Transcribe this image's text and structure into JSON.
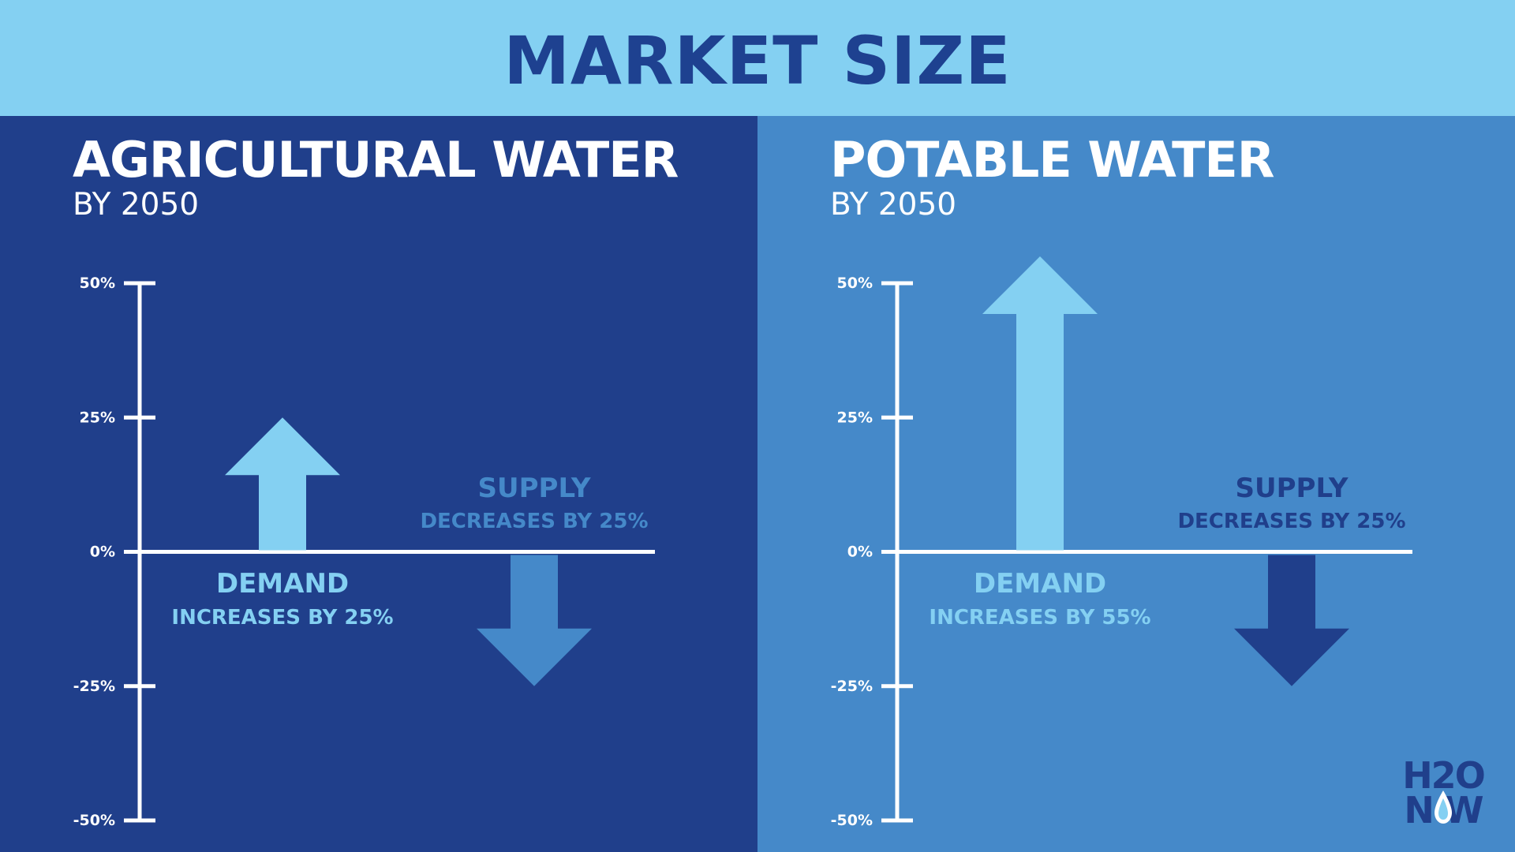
{
  "title": "MARKET SIZE",
  "colors": {
    "header_bg": "#84d0f2",
    "title_text": "#1e4190",
    "left_bg": "#203f8b",
    "right_bg": "#4589c9",
    "demand_arrow": "#84d0f2",
    "left_supply": "#4589c9",
    "right_supply": "#203f8b",
    "axis": "#ffffff"
  },
  "logo": {
    "line1": "H2O",
    "line2": "N W"
  },
  "chart_data": [
    {
      "type": "bar",
      "title": "AGRICULTURAL WATER",
      "subtitle": "BY 2050",
      "ylim": [
        -50,
        50
      ],
      "yticks": [
        50,
        25,
        0,
        -25,
        -50
      ],
      "ytick_labels": [
        "50%",
        "25%",
        "0%",
        "-25%",
        "-50%"
      ],
      "grid": false,
      "series": [
        {
          "name": "DEMAND",
          "value": 25,
          "annotation": "INCREASES BY 25%"
        },
        {
          "name": "SUPPLY",
          "value": -25,
          "annotation": "DECREASES BY 25%"
        }
      ]
    },
    {
      "type": "bar",
      "title": "POTABLE WATER",
      "subtitle": "BY 2050",
      "ylim": [
        -50,
        50
      ],
      "yticks": [
        50,
        25,
        0,
        -25,
        -50
      ],
      "ytick_labels": [
        "50%",
        "25%",
        "0%",
        "-25%",
        "-50%"
      ],
      "grid": false,
      "series": [
        {
          "name": "DEMAND",
          "value": 55,
          "annotation": "INCREASES BY 55%"
        },
        {
          "name": "SUPPLY",
          "value": -25,
          "annotation": "DECREASES BY 25%"
        }
      ]
    }
  ]
}
